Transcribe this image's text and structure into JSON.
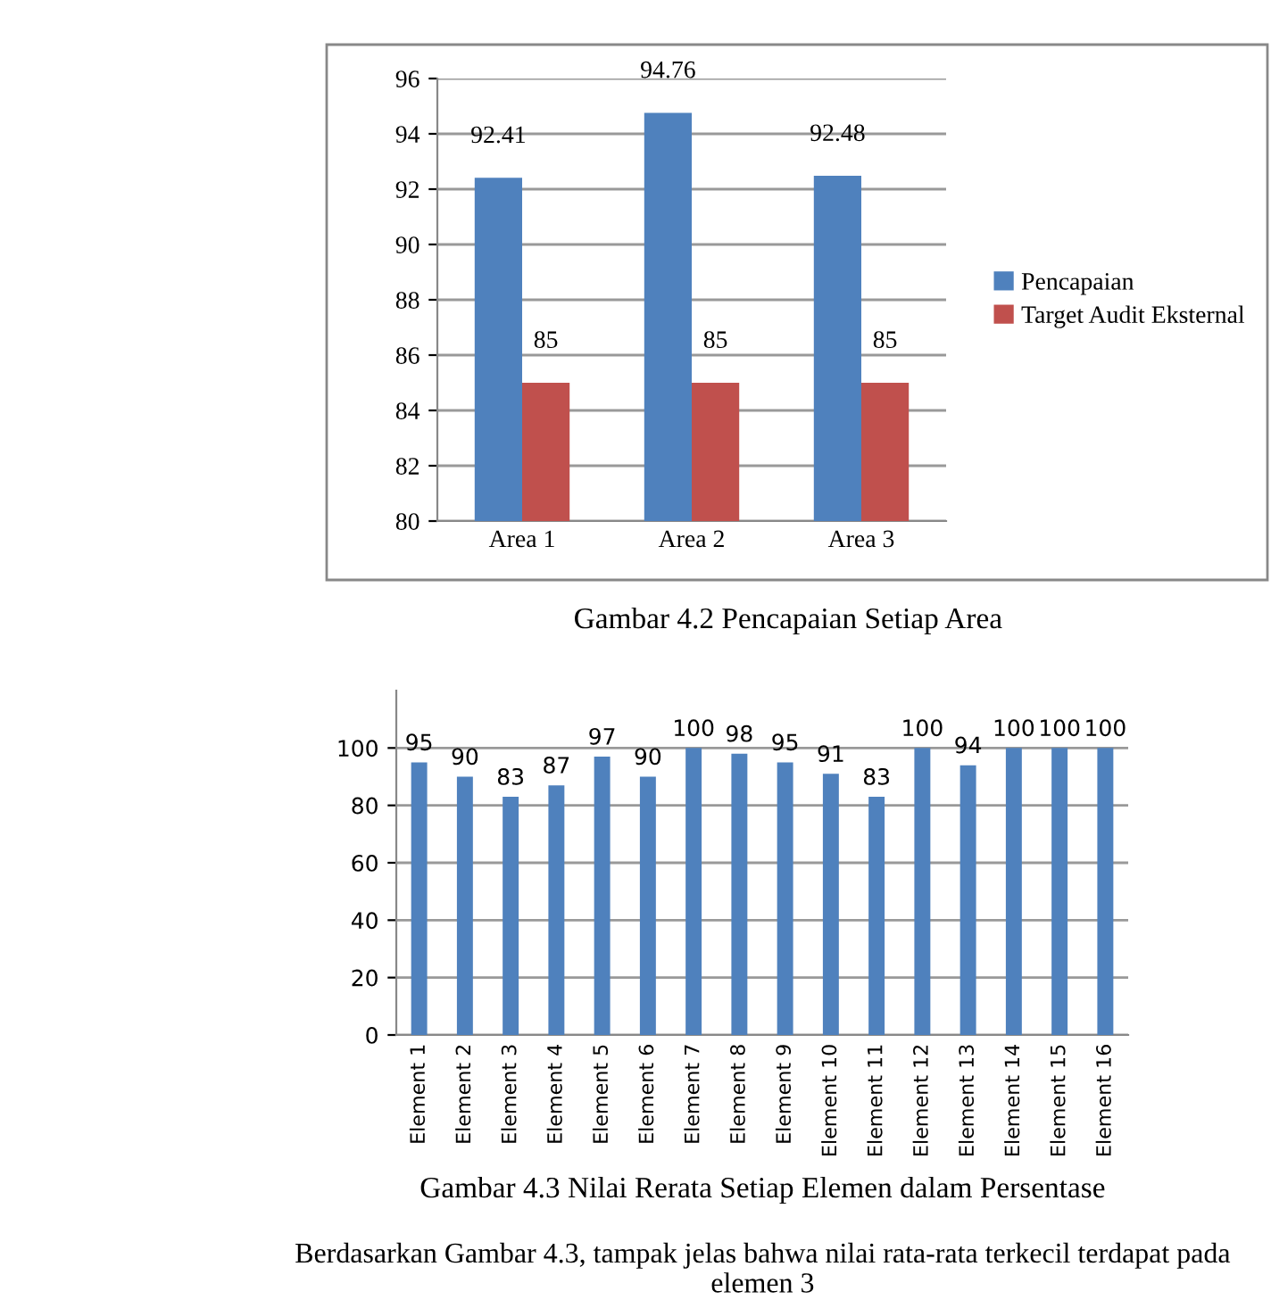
{
  "chart_data": [
    {
      "type": "bar",
      "categories": [
        "Area 1",
        "Area 2",
        "Area 3"
      ],
      "series": [
        {
          "name": "Pencapaian",
          "color": "#4f81bd",
          "values": [
            92.41,
            94.76,
            92.48
          ]
        },
        {
          "name": "Target Audit Eksternal",
          "color": "#c0504d",
          "values": [
            85,
            85,
            85
          ]
        }
      ],
      "ylim": [
        80,
        96
      ],
      "yticks": [
        80,
        82,
        84,
        86,
        88,
        90,
        92,
        94,
        96
      ],
      "grid": "y",
      "legend": "right",
      "data_labels": true,
      "annotations": [
        "Gambar 4.2 Pencapaian Setiap Area"
      ]
    },
    {
      "type": "bar",
      "categories": [
        "Element 1",
        "Element 2",
        "Element 3",
        "Element 4",
        "Element 5",
        "Element 6",
        "Element 7",
        "Element 8",
        "Element 9",
        "Element 10",
        "Element 11",
        "Element 12",
        "Element 13",
        "Element 14",
        "Element 15",
        "Element 16"
      ],
      "series": [
        {
          "color": "#4f81bd",
          "values": [
            95,
            90,
            83,
            87,
            97,
            90,
            100,
            98,
            95,
            91,
            83,
            100,
            94,
            100,
            100,
            100
          ]
        }
      ],
      "ylim": [
        0,
        120
      ],
      "yticks": [
        0,
        20,
        40,
        60,
        80,
        100
      ],
      "grid": "y",
      "data_labels": true,
      "annotations": [
        "Gambar 4.3 Nilai Rerata Setiap Elemen dalam Persentase",
        "Berdasarkan Gambar 4.3, tampak jelas bahwa nilai rata-rata terkecil terdapat pada elemen 3"
      ]
    }
  ]
}
